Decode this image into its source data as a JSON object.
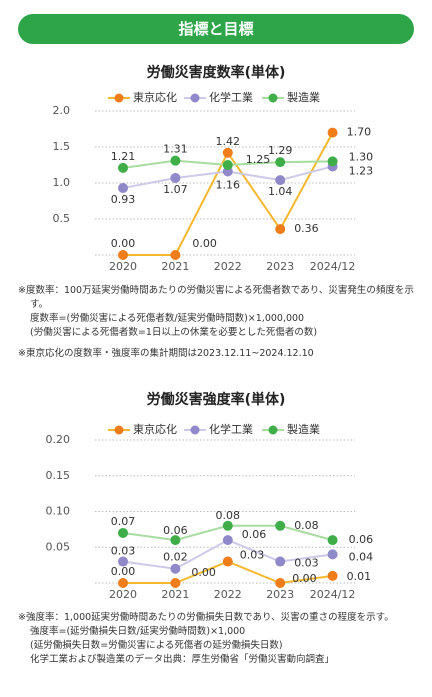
{
  "header": {
    "title": "指標と目標"
  },
  "chart_data": [
    {
      "type": "line",
      "title": "労働災害度数率(単体)",
      "categories": [
        "2020",
        "2021",
        "2022",
        "2023",
        "2024/12"
      ],
      "ylim": [
        0,
        2
      ],
      "yticks": [
        0.5,
        {
          "value": 1,
          "label": "1.0"
        },
        1.5,
        {
          "value": 2,
          "label": "2.0"
        }
      ],
      "grid": true,
      "series": [
        {
          "name": "東京応化",
          "color": "#ef7d1a",
          "line_color": "#f5b82e",
          "values": [
            0,
            0,
            1.42,
            0.36,
            1.7
          ],
          "value_labels": [
            "0.00",
            "0.00",
            "1.42",
            "0.36",
            "1.70"
          ]
        },
        {
          "name": "化学工業",
          "color": "#8f89c9",
          "line_color": "#cdc9e8",
          "values": [
            0.93,
            1.07,
            1.16,
            1.04,
            1.23
          ],
          "value_labels": [
            "0.93",
            "1.07",
            "1.16",
            "1.04",
            "1.23"
          ]
        },
        {
          "name": "製造業",
          "color": "#3fae49",
          "line_color": "#a8dca0",
          "values": [
            1.21,
            1.31,
            1.25,
            1.29,
            1.3
          ],
          "value_labels": [
            "1.21",
            "1.31",
            "1.25",
            "1.29",
            "1.30"
          ]
        }
      ]
    },
    {
      "type": "line",
      "title": "労働災害強度率(単体)",
      "categories": [
        "2020",
        "2021",
        "2022",
        "2023",
        "2024/12"
      ],
      "ylim": [
        0,
        0.2
      ],
      "yticks": [
        0.05,
        {
          "value": 0.1,
          "label": "0.10"
        },
        0.15,
        {
          "value": 0.2,
          "label": "0.20"
        }
      ],
      "grid": true,
      "series": [
        {
          "name": "東京応化",
          "color": "#ef7d1a",
          "line_color": "#f5b82e",
          "values": [
            0,
            0,
            0.03,
            0,
            0.01
          ],
          "value_labels": [
            "0.00",
            "0.00",
            "0.03",
            "0.00",
            "0.01"
          ]
        },
        {
          "name": "化学工業",
          "color": "#8f89c9",
          "line_color": "#cdc9e8",
          "values": [
            0.03,
            0.02,
            0.06,
            0.03,
            0.04
          ],
          "value_labels": [
            "0.03",
            "0.02",
            "0.06",
            "0.03",
            "0.04"
          ]
        },
        {
          "name": "製造業",
          "color": "#3fae49",
          "line_color": "#a8dca0",
          "values": [
            0.07,
            0.06,
            0.08,
            0.08,
            0.06
          ],
          "value_labels": [
            "0.07",
            "0.06",
            "0.08",
            "0.08",
            "0.06"
          ]
        }
      ]
    }
  ],
  "notes": [
    [
      "※度数率：100万延実労働時間あたりの労働災害による死傷者数であり、災害発生の頻度を示す。",
      "度数率=(労働災害による死傷者数/延実労働時間数)×1,000,000",
      "(労働災害による死傷者数=1日以上の休業を必要とした死傷者の数)",
      "※東京応化の度数率・強度率の集計期間は2023.12.11~2024.12.10"
    ],
    [
      "※強度率：1,000延実労働時間あたりの労働損失日数であり、災害の重さの程度を示す。",
      "強度率=(延労働損失日数/延実労働時間数)×1,000",
      "(延労働損失日数=労働災害による死傷者の延労働損失日数)",
      "化学工業および製造業のデータ出典：厚生労働省「労働災害動向調査」"
    ]
  ]
}
